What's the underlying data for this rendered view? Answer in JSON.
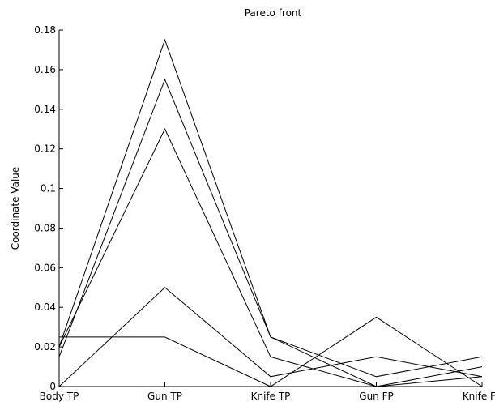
{
  "chart_data": {
    "type": "line",
    "title": "Pareto front",
    "xlabel": "",
    "ylabel": "Coordinate Value",
    "categories": [
      "Body TP",
      "Gun TP",
      "Knife TP",
      "Gun FP",
      "Knife FP"
    ],
    "ylim": [
      0,
      0.18
    ],
    "yticks": [
      0,
      0.02,
      0.04,
      0.06,
      0.08,
      0.1,
      0.12,
      0.14,
      0.16,
      0.18
    ],
    "ytick_labels": [
      "0",
      "0.02",
      "0.04",
      "0.06",
      "0.08",
      "0.1",
      "0.12",
      "0.14",
      "0.16",
      "0.18"
    ],
    "grid": false,
    "legend": "none",
    "line_color": "#000000",
    "series": [
      {
        "values": [
          0.02,
          0.175,
          0.025,
          0.0,
          0.005
        ]
      },
      {
        "values": [
          0.015,
          0.155,
          0.025,
          0.005,
          0.015
        ]
      },
      {
        "values": [
          0.02,
          0.13,
          0.015,
          0.0,
          0.01
        ]
      },
      {
        "values": [
          0.025,
          0.025,
          0.0,
          0.035,
          0.0
        ]
      },
      {
        "values": [
          0.0,
          0.05,
          0.005,
          0.015,
          0.005
        ]
      }
    ]
  }
}
